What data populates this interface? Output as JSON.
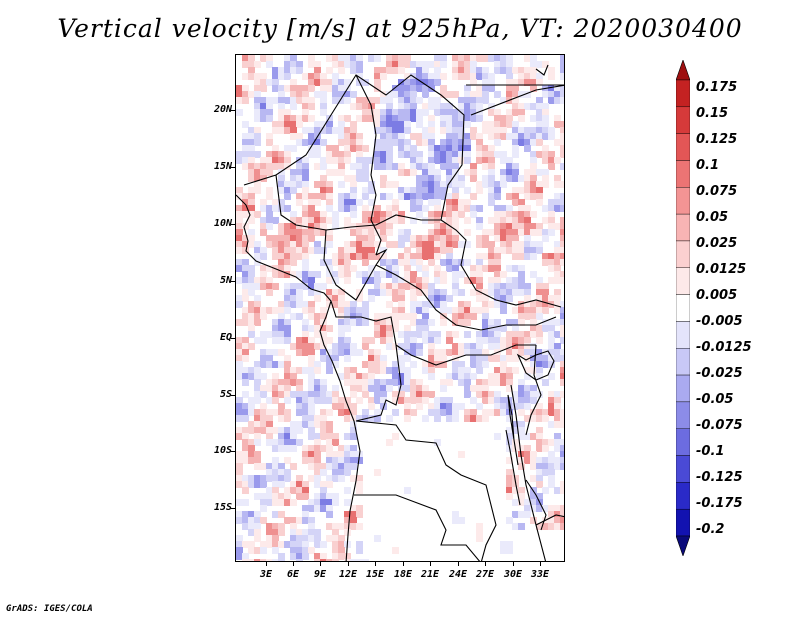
{
  "title": "Vertical velocity [m/s] at 925hPa, VT: 2020030400",
  "credit": "GrADS: IGES/COLA",
  "map": {
    "lat_labels": [
      "20N",
      "15N",
      "10N",
      "5N",
      "EQ",
      "5S",
      "10S",
      "15S"
    ],
    "lon_labels": [
      "3E",
      "6E",
      "9E",
      "12E",
      "15E",
      "18E",
      "21E",
      "24E",
      "27E",
      "30E",
      "33E"
    ]
  },
  "colorbar": {
    "labels": [
      "0.175",
      "0.15",
      "0.125",
      "0.1",
      "0.075",
      "0.05",
      "0.025",
      "0.0125",
      "0.005",
      "-0.005",
      "-0.0125",
      "-0.025",
      "-0.05",
      "-0.075",
      "-0.1",
      "-0.125",
      "-0.175",
      "-0.2"
    ],
    "colors": [
      "#ab1515",
      "#c42222",
      "#d63a3a",
      "#e35656",
      "#ec7474",
      "#f39494",
      "#f8b4b4",
      "#fbd0d0",
      "#fde9e9",
      "#ffffff",
      "#e4e4fb",
      "#c8c8f6",
      "#aaaaf0",
      "#8c8ce8",
      "#6c6ce0",
      "#4a4ad6",
      "#2a2ac8",
      "#1212b0",
      "#0a0a8a"
    ],
    "top_arrow_color": "#9e1010",
    "bottom_arrow_color": "#0a0a7a"
  }
}
